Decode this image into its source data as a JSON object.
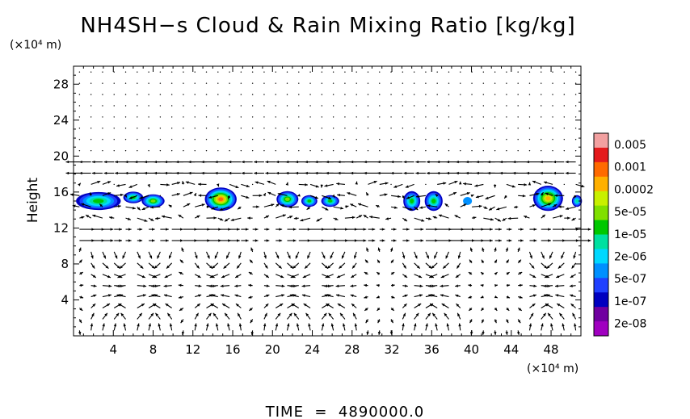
{
  "chart_data": {
    "type": "heatmap",
    "title": "NH4SH−s Cloud & Rain Mixing Ratio [kg/kg]",
    "ylabel": "Height",
    "y_unit": "(×10⁴ m)",
    "x_unit": "(×10⁴ m)",
    "xlim": [
      0,
      51
    ],
    "ylim": [
      0,
      30
    ],
    "x_ticks": [
      "4",
      "8",
      "12",
      "16",
      "20",
      "24",
      "28",
      "32",
      "36",
      "40",
      "44",
      "48"
    ],
    "y_ticks": [
      "4",
      "8",
      "12",
      "16",
      "20",
      "24",
      "28"
    ],
    "footer": "TIME  =  4890000.0",
    "legend": {
      "labels": [
        "0.005",
        "0.001",
        "0.0002",
        "5e-05",
        "1e-05",
        "2e-06",
        "5e-07",
        "1e-07",
        "2e-08"
      ],
      "colors": [
        "#f2a0a0",
        "#e41a1c",
        "#ff6a00",
        "#ffb000",
        "#c8f000",
        "#80e000",
        "#00c800",
        "#00e0a0",
        "#00d8ff",
        "#0090ff",
        "#2040ff",
        "#0000c0",
        "#7000a0",
        "#a000c0"
      ]
    },
    "cloud_cells": [
      {
        "x": 2.5,
        "y": 15.0,
        "w": 4.5,
        "h": 2.0,
        "level": 0.5
      },
      {
        "x": 6.0,
        "y": 15.4,
        "w": 2.0,
        "h": 1.3,
        "level": 0.5
      },
      {
        "x": 8.0,
        "y": 15.0,
        "w": 2.3,
        "h": 1.5,
        "level": 0.6
      },
      {
        "x": 14.8,
        "y": 15.2,
        "w": 3.2,
        "h": 2.6,
        "level": 0.85
      },
      {
        "x": 21.5,
        "y": 15.2,
        "w": 2.2,
        "h": 1.8,
        "level": 0.6
      },
      {
        "x": 23.7,
        "y": 15.0,
        "w": 1.6,
        "h": 1.3,
        "level": 0.5
      },
      {
        "x": 25.8,
        "y": 15.0,
        "w": 1.8,
        "h": 1.3,
        "level": 0.5
      },
      {
        "x": 34.0,
        "y": 15.0,
        "w": 1.7,
        "h": 2.2,
        "level": 0.55
      },
      {
        "x": 36.2,
        "y": 15.0,
        "w": 1.8,
        "h": 2.2,
        "level": 0.55
      },
      {
        "x": 39.6,
        "y": 15.0,
        "w": 0.9,
        "h": 0.9,
        "level": 0.3
      },
      {
        "x": 47.7,
        "y": 15.3,
        "w": 3.0,
        "h": 2.8,
        "level": 0.75
      },
      {
        "x": 50.6,
        "y": 15.0,
        "w": 1.0,
        "h": 1.3,
        "level": 0.45
      }
    ]
  }
}
